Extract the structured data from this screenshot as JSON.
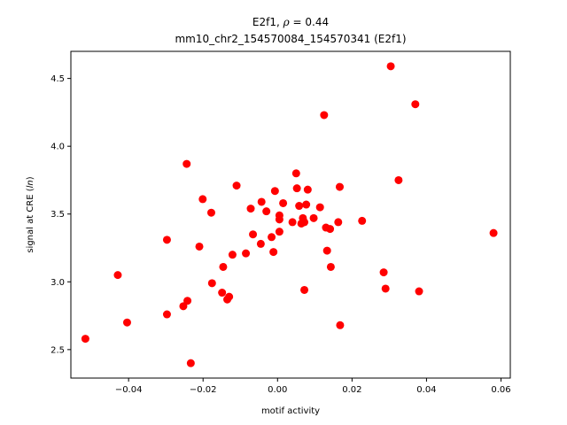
{
  "chart_data": {
    "type": "scatter",
    "title_line1_prefix": "E2f1, ",
    "title_line1_symbol": "ρ",
    "title_line1_suffix": " = 0.44",
    "title_line2": "mm10_chr2_154570084_154570341 (E2f1)",
    "xlabel": "motif activity",
    "ylabel_prefix": "signal at CRE (",
    "ylabel_italic": "ln",
    "ylabel_suffix": ")",
    "xlim": [
      -0.0555,
      0.0625
    ],
    "ylim": [
      2.29,
      4.7
    ],
    "xticks": [
      -0.04,
      -0.02,
      0.0,
      0.02,
      0.04,
      0.06
    ],
    "xtick_labels": [
      "−0.04",
      "−0.02",
      "0.00",
      "0.02",
      "0.04",
      "0.06"
    ],
    "yticks": [
      2.5,
      3.0,
      3.5,
      4.0,
      4.5
    ],
    "ytick_labels": [
      "2.5",
      "3.0",
      "3.5",
      "4.0",
      "4.5"
    ],
    "grid": false,
    "marker_color": "#ff0000",
    "points": [
      {
        "x": -0.0516,
        "y": 2.58
      },
      {
        "x": -0.0429,
        "y": 3.05
      },
      {
        "x": -0.0404,
        "y": 2.7
      },
      {
        "x": -0.0297,
        "y": 3.31
      },
      {
        "x": -0.0297,
        "y": 2.76
      },
      {
        "x": -0.0253,
        "y": 2.82
      },
      {
        "x": -0.0244,
        "y": 3.87
      },
      {
        "x": -0.0242,
        "y": 2.86
      },
      {
        "x": -0.0233,
        "y": 2.4
      },
      {
        "x": -0.021,
        "y": 3.26
      },
      {
        "x": -0.0201,
        "y": 3.61
      },
      {
        "x": -0.0178,
        "y": 3.51
      },
      {
        "x": -0.0176,
        "y": 2.99
      },
      {
        "x": -0.0149,
        "y": 2.92
      },
      {
        "x": -0.0146,
        "y": 3.11
      },
      {
        "x": -0.0135,
        "y": 2.87
      },
      {
        "x": -0.013,
        "y": 2.89
      },
      {
        "x": -0.0121,
        "y": 3.2
      },
      {
        "x": -0.011,
        "y": 3.71
      },
      {
        "x": -0.0085,
        "y": 3.21
      },
      {
        "x": -0.0072,
        "y": 3.54
      },
      {
        "x": -0.0066,
        "y": 3.35
      },
      {
        "x": -0.0045,
        "y": 3.28
      },
      {
        "x": -0.0043,
        "y": 3.59
      },
      {
        "x": -0.003,
        "y": 3.52
      },
      {
        "x": -0.0016,
        "y": 3.33
      },
      {
        "x": -0.0011,
        "y": 3.22
      },
      {
        "x": -0.0007,
        "y": 3.67
      },
      {
        "x": 0.0005,
        "y": 3.49
      },
      {
        "x": 0.0005,
        "y": 3.46
      },
      {
        "x": 0.0005,
        "y": 3.37
      },
      {
        "x": 0.0015,
        "y": 3.58
      },
      {
        "x": 0.004,
        "y": 3.44
      },
      {
        "x": 0.005,
        "y": 3.8
      },
      {
        "x": 0.0052,
        "y": 3.69
      },
      {
        "x": 0.0058,
        "y": 3.56
      },
      {
        "x": 0.0064,
        "y": 3.43
      },
      {
        "x": 0.0068,
        "y": 3.47
      },
      {
        "x": 0.0072,
        "y": 3.44
      },
      {
        "x": 0.0072,
        "y": 2.94
      },
      {
        "x": 0.0077,
        "y": 3.57
      },
      {
        "x": 0.0081,
        "y": 3.68
      },
      {
        "x": 0.0097,
        "y": 3.47
      },
      {
        "x": 0.0114,
        "y": 3.55
      },
      {
        "x": 0.0125,
        "y": 4.23
      },
      {
        "x": 0.013,
        "y": 3.4
      },
      {
        "x": 0.0133,
        "y": 3.23
      },
      {
        "x": 0.0141,
        "y": 3.39
      },
      {
        "x": 0.0143,
        "y": 3.11
      },
      {
        "x": 0.0163,
        "y": 3.44
      },
      {
        "x": 0.0167,
        "y": 3.7
      },
      {
        "x": 0.0168,
        "y": 2.68
      },
      {
        "x": 0.0227,
        "y": 3.45
      },
      {
        "x": 0.0285,
        "y": 3.07
      },
      {
        "x": 0.029,
        "y": 2.95
      },
      {
        "x": 0.0304,
        "y": 4.59
      },
      {
        "x": 0.0325,
        "y": 3.75
      },
      {
        "x": 0.037,
        "y": 4.31
      },
      {
        "x": 0.038,
        "y": 2.93
      },
      {
        "x": 0.058,
        "y": 3.36
      }
    ]
  }
}
